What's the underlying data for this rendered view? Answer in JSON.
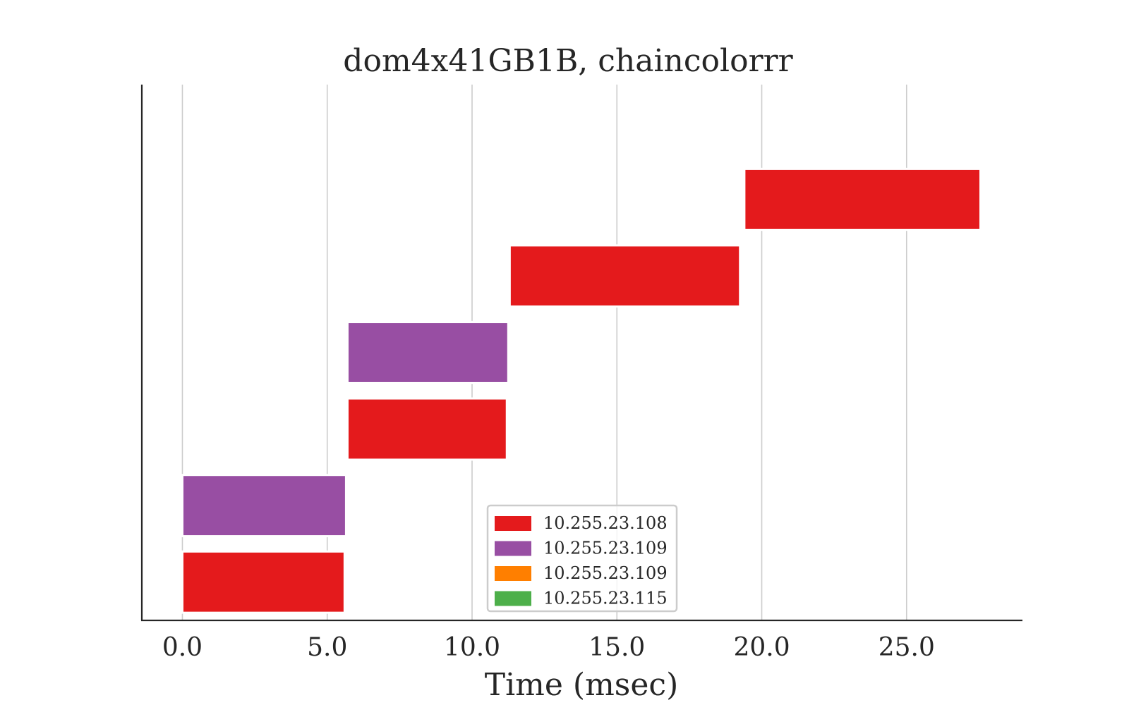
{
  "chart_data": {
    "type": "bar",
    "orientation": "horizontal",
    "title": "dom4x41GB1B, chaincolorrr",
    "xlabel": "Time (msec)",
    "ylabel": "",
    "xlim": [
      -1.4,
      29.0
    ],
    "ylim": [
      -0.5,
      6.5
    ],
    "grid": {
      "x": true,
      "y": false
    },
    "legend_position": "bottom-center",
    "xticks": [
      0.0,
      5.0,
      10.0,
      15.0,
      20.0,
      25.0
    ],
    "xtick_labels": [
      "0.0",
      "5.0",
      "10.0",
      "15.0",
      "20.0",
      "25.0"
    ],
    "legend": [
      {
        "label": "10.255.23.108",
        "color": "#e41a1c"
      },
      {
        "label": "10.255.23.109",
        "color": "#984ea3"
      },
      {
        "label": "10.255.23.109",
        "color": "#ff7f00"
      },
      {
        "label": "10.255.23.115",
        "color": "#4daf4a"
      }
    ],
    "bars": [
      {
        "row": 0,
        "start": 0.0,
        "end": 5.6,
        "series_index": 0
      },
      {
        "row": 1,
        "start": 0.0,
        "end": 5.65,
        "series_index": 1
      },
      {
        "row": 2,
        "start": 5.7,
        "end": 11.2,
        "series_index": 0
      },
      {
        "row": 3,
        "start": 5.7,
        "end": 11.25,
        "series_index": 1
      },
      {
        "row": 4,
        "start": 11.3,
        "end": 19.25,
        "series_index": 0
      },
      {
        "row": 5,
        "start": 19.4,
        "end": 27.55,
        "series_index": 0
      }
    ]
  }
}
